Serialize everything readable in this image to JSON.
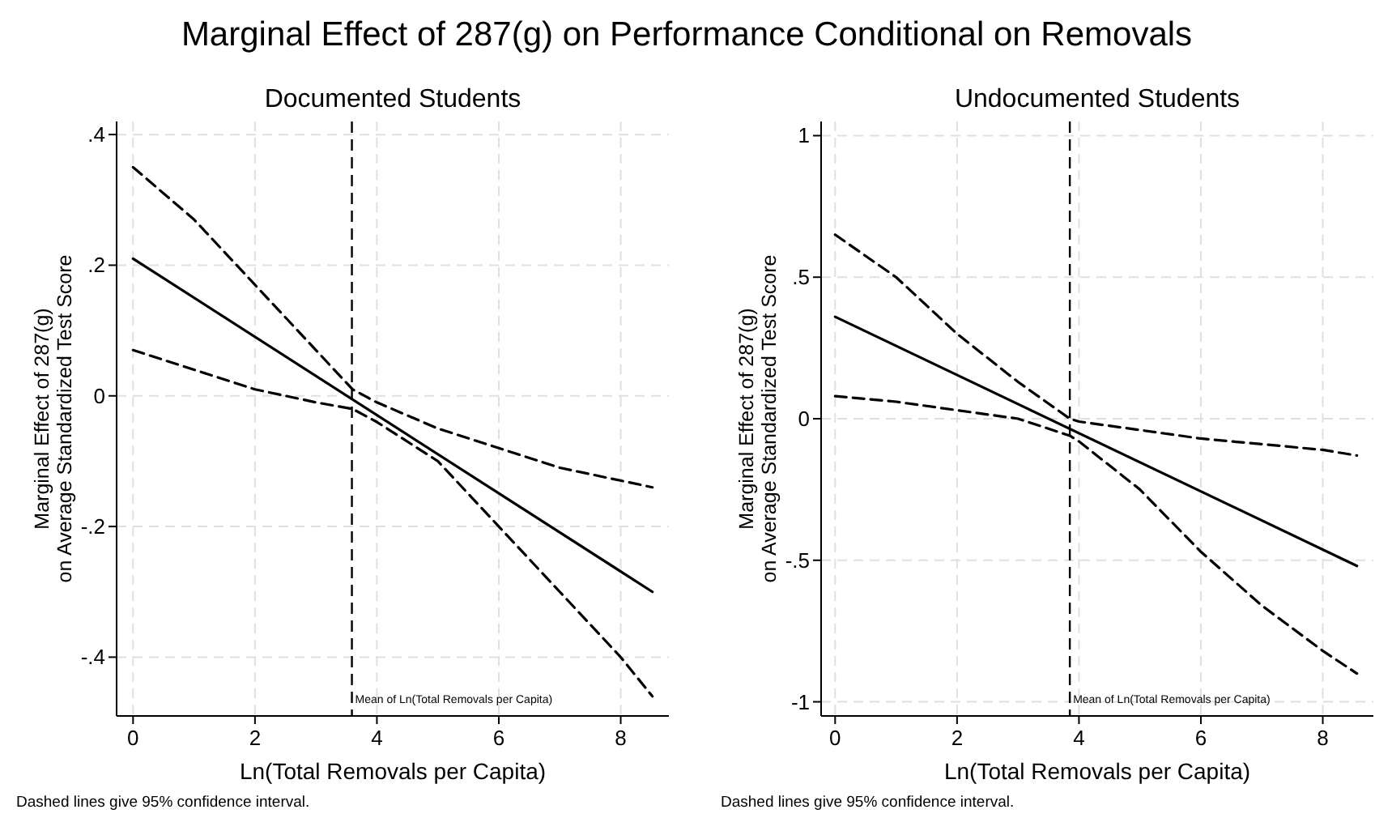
{
  "chart_data": [
    {
      "type": "line",
      "title": "Marginal Effect of 287(g) on Performance Conditional on Removals",
      "subtitle": "Documented Students",
      "xlabel": "Ln(Total Removals per Capita)",
      "ylabel": "Marginal Effect of 287(g)\non Average Standardized Test Score",
      "xlim": [
        -0.27,
        8.79
      ],
      "xticks": [
        0,
        2,
        4,
        6,
        8
      ],
      "ylim": [
        -0.49,
        0.42
      ],
      "yticks": [
        {
          "value": -0.4,
          "label": "-.4"
        },
        {
          "value": -0.2,
          "label": "-.2"
        },
        0,
        {
          "value": 0.2,
          "label": ".2"
        },
        {
          "value": 0.4,
          "label": ".4"
        }
      ],
      "grid": true,
      "series": [
        {
          "color": "#000000",
          "line_style": "solid",
          "x": [
            0,
            8.52
          ],
          "values": [
            0.21,
            -0.3
          ]
        },
        {
          "color": "#000000",
          "line_style": "dashed",
          "x": [
            0,
            1,
            2,
            3,
            3.6,
            4,
            5,
            6,
            7,
            8.52
          ],
          "values": [
            0.35,
            0.27,
            0.17,
            0.07,
            0.01,
            -0.01,
            -0.05,
            -0.08,
            -0.11,
            -0.14
          ]
        },
        {
          "color": "#000000",
          "line_style": "dashed",
          "x": [
            0,
            1,
            2,
            3,
            3.6,
            4,
            5,
            6,
            7,
            8,
            8.52
          ],
          "values": [
            0.07,
            0.04,
            0.01,
            -0.01,
            -0.02,
            -0.04,
            -0.1,
            -0.2,
            -0.3,
            -0.4,
            -0.46
          ]
        }
      ],
      "ref_lines": [
        {
          "axis": "x",
          "value": 3.59,
          "label": "Mean of Ln(Total Removals per Capita)",
          "color": "#000000",
          "line_style": "dashed"
        }
      ],
      "annotations": [
        "Dashed lines give 95% confidence interval."
      ]
    },
    {
      "type": "line",
      "subtitle": "Undocumented Students",
      "xlabel": "Ln(Total Removals per Capita)",
      "ylabel": "Marginal Effect of 287(g)\non Average Standardized Test Score",
      "xlim": [
        -0.23,
        8.83
      ],
      "xticks": [
        0,
        2,
        4,
        6,
        8
      ],
      "ylim": [
        -1.05,
        1.05
      ],
      "yticks": [
        -1,
        {
          "value": -0.5,
          "label": "-.5"
        },
        0,
        {
          "value": 0.5,
          "label": ".5"
        },
        1
      ],
      "grid": true,
      "series": [
        {
          "color": "#000000",
          "line_style": "solid",
          "x": [
            0,
            8.56
          ],
          "values": [
            0.36,
            -0.52
          ]
        },
        {
          "color": "#000000",
          "line_style": "dashed",
          "x": [
            0,
            1,
            2,
            3,
            3.85,
            4,
            5,
            6,
            7,
            8,
            8.56
          ],
          "values": [
            0.65,
            0.5,
            0.3,
            0.13,
            0.0,
            -0.01,
            -0.04,
            -0.07,
            -0.09,
            -0.11,
            -0.13
          ]
        },
        {
          "color": "#000000",
          "line_style": "dashed",
          "x": [
            0,
            1,
            2,
            3,
            3.85,
            4,
            5,
            6,
            7,
            8,
            8.56
          ],
          "values": [
            0.08,
            0.06,
            0.03,
            0.0,
            -0.06,
            -0.08,
            -0.25,
            -0.47,
            -0.66,
            -0.82,
            -0.9
          ]
        }
      ],
      "ref_lines": [
        {
          "axis": "x",
          "value": 3.85,
          "label": "Mean of Ln(Total Removals per Capita)",
          "color": "#000000",
          "line_style": "dashed"
        }
      ],
      "annotations": [
        "Dashed lines give 95% confidence interval."
      ]
    }
  ]
}
